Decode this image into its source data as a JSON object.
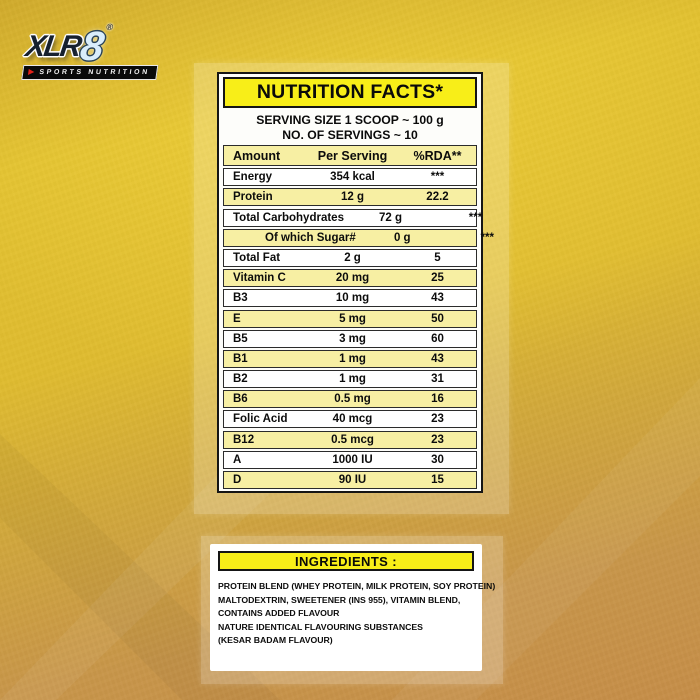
{
  "logo": {
    "brand_x": "XLR",
    "brand_8": "8",
    "registered": "®",
    "tagline": "SPORTS NUTRITION"
  },
  "nutrition_card": {
    "title": "NUTRITION FACTS*",
    "serving_line1": "SERVING SIZE 1 SCOOP ~ 100 g",
    "serving_line2": "NO. OF SERVINGS ~ 10",
    "columns": [
      "Amount",
      "Per Serving",
      "%RDA**"
    ],
    "rows": [
      {
        "label": "Energy",
        "per_serving": "354 kcal",
        "rda": "***",
        "indent": false
      },
      {
        "label": "Protein",
        "per_serving": "12 g",
        "rda": "22.2",
        "indent": false
      },
      {
        "label": "Total Carbohydrates",
        "per_serving": "72 g",
        "rda": "***",
        "indent": false
      },
      {
        "label": "Of which Sugar#",
        "per_serving": "0 g",
        "rda": "***",
        "indent": true
      },
      {
        "label": "Total Fat",
        "per_serving": "2 g",
        "rda": "5",
        "indent": false
      },
      {
        "label": "Vitamin C",
        "per_serving": "20 mg",
        "rda": "25",
        "indent": false
      },
      {
        "label": "B3",
        "per_serving": "10 mg",
        "rda": "43",
        "indent": false
      },
      {
        "label": "E",
        "per_serving": "5 mg",
        "rda": "50",
        "indent": false
      },
      {
        "label": "B5",
        "per_serving": "3 mg",
        "rda": "60",
        "indent": false
      },
      {
        "label": "B1",
        "per_serving": "1 mg",
        "rda": "43",
        "indent": false
      },
      {
        "label": "B2",
        "per_serving": "1 mg",
        "rda": "31",
        "indent": false
      },
      {
        "label": "B6",
        "per_serving": "0.5 mg",
        "rda": "16",
        "indent": false
      },
      {
        "label": "Folic Acid",
        "per_serving": "40 mcg",
        "rda": "23",
        "indent": false
      },
      {
        "label": "B12",
        "per_serving": "0.5 mcg",
        "rda": "23",
        "indent": false
      },
      {
        "label": "A",
        "per_serving": "1000 IU",
        "rda": "30",
        "indent": false
      },
      {
        "label": "D",
        "per_serving": "90 IU",
        "rda": "15",
        "indent": false
      }
    ]
  },
  "ingredients_card": {
    "title": "INGREDIENTS :",
    "lines": [
      "PROTEIN BLEND (WHEY PROTEIN, MILK PROTEIN, SOY PROTEIN)",
      "MALTODEXTRIN, SWEETENER (INS 955), VITAMIN BLEND,",
      "CONTAINS ADDED FLAVOUR",
      "NATURE IDENTICAL FLAVOURING SUBSTANCES",
      "(KESAR BADAM FLAVOUR)"
    ]
  },
  "colors": {
    "accent_yellow": "#f8ee18",
    "row_yellow": "#f7efa3",
    "background_gold": "#e0bc30",
    "background_tan": "#c68e49",
    "logo_dark_blue": "#16202e",
    "logo_ice_blue": "#d9edfb",
    "logo_red": "#e32119"
  }
}
